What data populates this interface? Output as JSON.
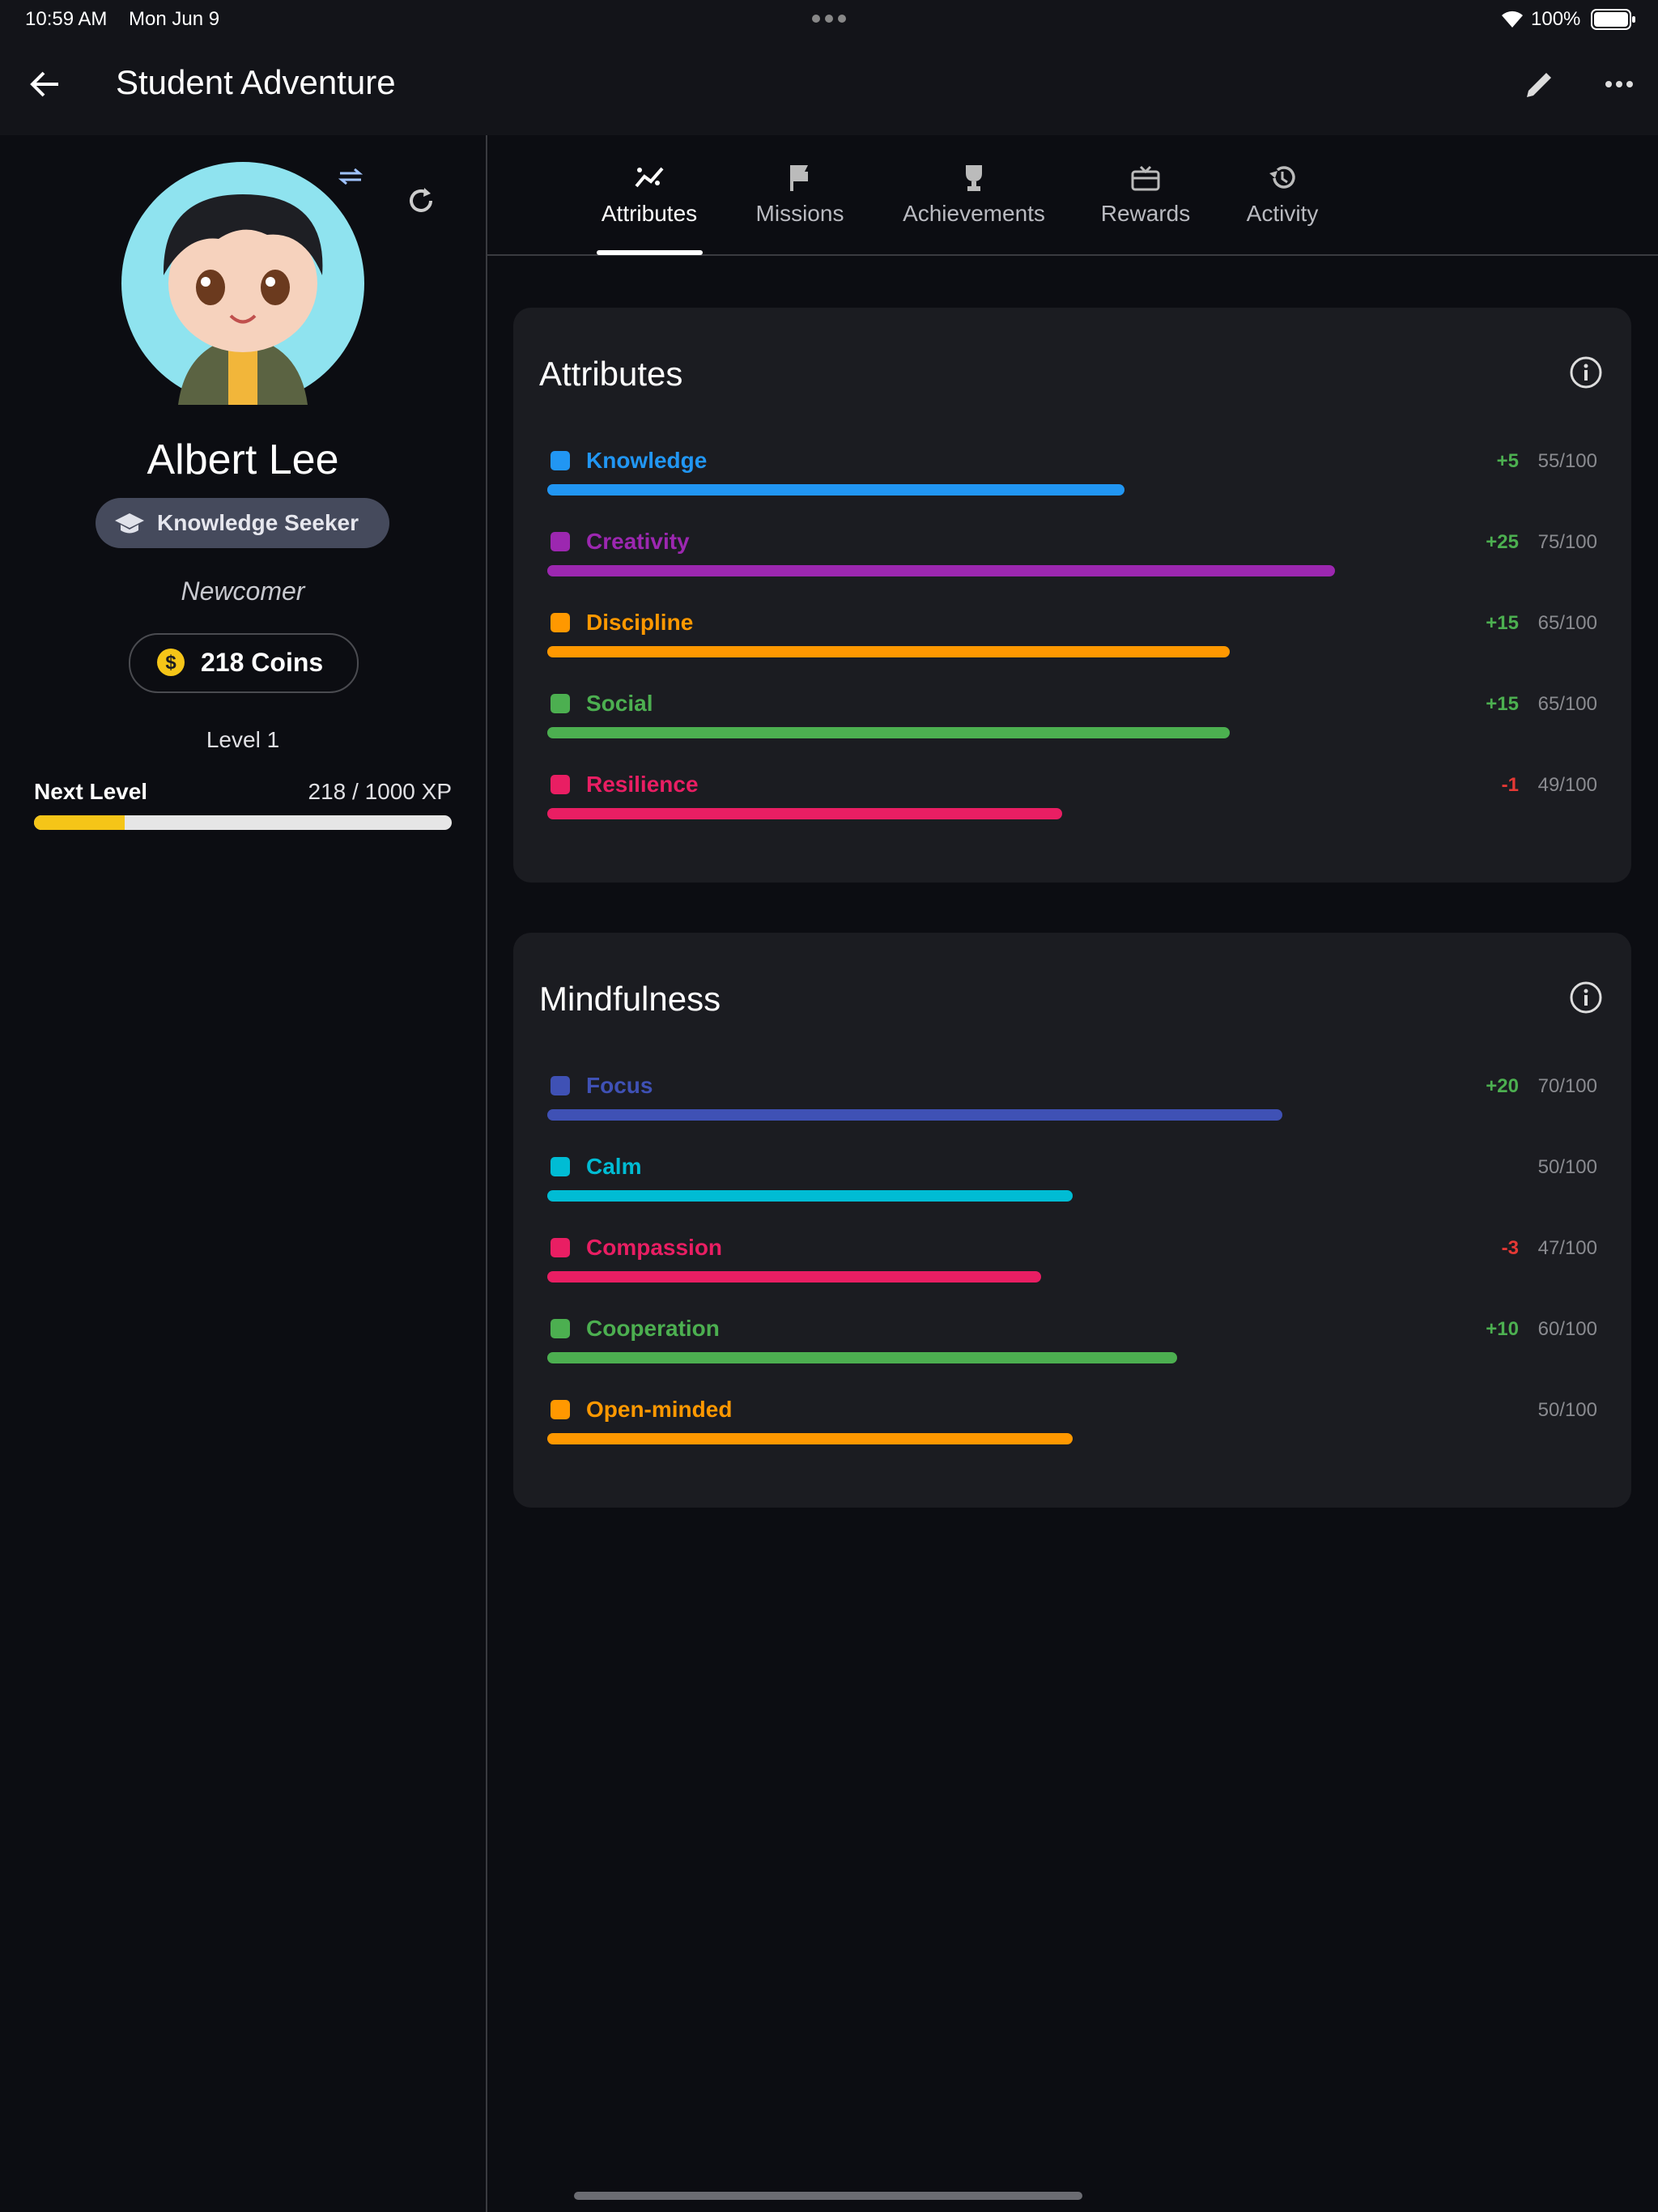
{
  "status_bar": {
    "time": "10:59 AM",
    "date": "Mon Jun 9",
    "battery": "100%"
  },
  "header": {
    "title": "Student Adventure"
  },
  "profile": {
    "name": "Albert Lee",
    "badge": "Knowledge Seeker",
    "rank": "Newcomer",
    "coins": "218 Coins",
    "level": "Level 1",
    "next_level": "Next Level",
    "xp": {
      "value": 218,
      "max": 1000,
      "label": "218 / 1000 XP"
    }
  },
  "tabs": [
    "Attributes",
    "Missions",
    "Achievements",
    "Rewards",
    "Activity"
  ],
  "sections": [
    {
      "title": "Attributes",
      "items": [
        {
          "name": "Knowledge",
          "color": "#2196f3",
          "delta": "+5",
          "value": 55,
          "max": 100,
          "label": "55/100"
        },
        {
          "name": "Creativity",
          "color": "#9c27b0",
          "delta": "+25",
          "value": 75,
          "max": 100,
          "label": "75/100"
        },
        {
          "name": "Discipline",
          "color": "#ff9800",
          "delta": "+15",
          "value": 65,
          "max": 100,
          "label": "65/100"
        },
        {
          "name": "Social",
          "color": "#4caf50",
          "delta": "+15",
          "value": 65,
          "max": 100,
          "label": "65/100"
        },
        {
          "name": "Resilience",
          "color": "#e91e63",
          "delta": "-1",
          "value": 49,
          "max": 100,
          "label": "49/100"
        }
      ]
    },
    {
      "title": "Mindfulness",
      "items": [
        {
          "name": "Focus",
          "color": "#3f51b5",
          "delta": "+20",
          "value": 70,
          "max": 100,
          "label": "70/100"
        },
        {
          "name": "Calm",
          "color": "#00bcd4",
          "value": 50,
          "max": 100,
          "label": "50/100"
        },
        {
          "name": "Compassion",
          "color": "#e91e63",
          "delta": "-3",
          "value": 47,
          "max": 100,
          "label": "47/100"
        },
        {
          "name": "Cooperation",
          "color": "#4caf50",
          "delta": "+10",
          "value": 60,
          "max": 100,
          "label": "60/100"
        },
        {
          "name": "Open-minded",
          "color": "#ff9800",
          "value": 50,
          "max": 100,
          "label": "50/100"
        }
      ]
    }
  ]
}
